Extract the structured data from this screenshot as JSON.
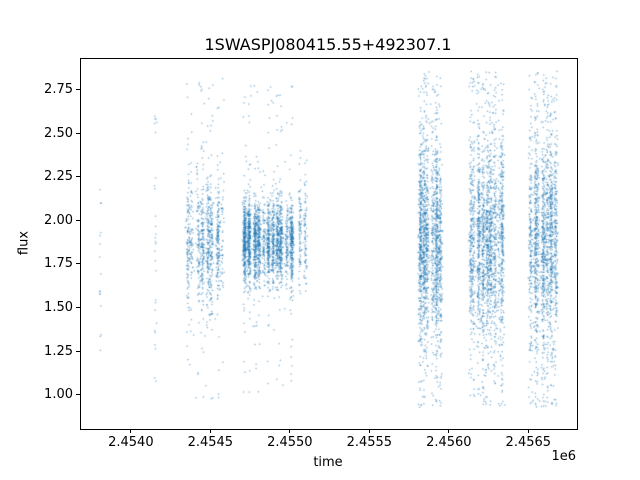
{
  "chart_data": {
    "type": "scatter",
    "title": "1SWASPJ080415.55+492307.1",
    "xlabel": "time",
    "ylabel": "flux",
    "x_offset_text": "1e6",
    "xlim": [
      2453680,
      2456800
    ],
    "ylim": [
      0.81,
      2.93
    ],
    "x_ticks": {
      "values": [
        2454000,
        2454500,
        2455000,
        2455500,
        2456000,
        2456500
      ],
      "labels": [
        "2.4540",
        "2.4545",
        "2.4550",
        "2.4555",
        "2.4560",
        "2.4565"
      ]
    },
    "y_ticks": {
      "values": [
        1.0,
        1.25,
        1.5,
        1.75,
        2.0,
        2.25,
        2.5,
        2.75
      ],
      "labels": [
        "1.00",
        "1.25",
        "1.50",
        "1.75",
        "2.00",
        "2.25",
        "2.50",
        "2.75"
      ]
    },
    "grid": false,
    "legend": null,
    "marker_color": "#1f77b4",
    "marker_alpha": 0.55,
    "marker_size": 1.3,
    "series": [
      {
        "name": "flux",
        "structure": "nightly-clusters",
        "clusters": [
          {
            "t_start": 2453795,
            "t_end": 2453815,
            "nights": 1,
            "points": 16,
            "night_sigma": 4,
            "flux_mean": 1.85,
            "flux_sigma": 0.38,
            "tail_frac": 0.45,
            "flux_min": 1.22,
            "flux_max": 2.44
          },
          {
            "t_start": 2454140,
            "t_end": 2454160,
            "nights": 1,
            "points": 28,
            "night_sigma": 4,
            "flux_mean": 1.8,
            "flux_sigma": 0.45,
            "tail_frac": 0.5,
            "flux_min": 0.95,
            "flux_max": 2.72
          },
          {
            "t_start": 2454335,
            "t_end": 2454585,
            "nights": 8,
            "points": 950,
            "night_sigma": 6,
            "flux_mean": 1.88,
            "flux_sigma": 0.17,
            "tail_frac": 0.13,
            "flux_min": 0.95,
            "flux_max": 2.82
          },
          {
            "t_start": 2454700,
            "t_end": 2455015,
            "nights": 11,
            "points": 2400,
            "night_sigma": 6,
            "flux_mean": 1.88,
            "flux_sigma": 0.12,
            "tail_frac": 0.07,
            "flux_min": 1.02,
            "flux_max": 2.78
          },
          {
            "t_start": 2455050,
            "t_end": 2455100,
            "nights": 2,
            "points": 160,
            "night_sigma": 5,
            "flux_mean": 1.95,
            "flux_sigma": 0.17,
            "tail_frac": 0.1,
            "flux_min": 1.58,
            "flux_max": 2.42
          },
          {
            "t_start": 2455800,
            "t_end": 2455950,
            "nights": 6,
            "points": 1700,
            "night_sigma": 6,
            "flux_mean": 1.88,
            "flux_sigma": 0.27,
            "tail_frac": 0.2,
            "flux_min": 0.93,
            "flux_max": 2.86
          },
          {
            "t_start": 2456115,
            "t_end": 2456345,
            "nights": 9,
            "points": 2000,
            "night_sigma": 6,
            "flux_mean": 1.88,
            "flux_sigma": 0.27,
            "tail_frac": 0.2,
            "flux_min": 0.93,
            "flux_max": 2.86
          },
          {
            "t_start": 2456495,
            "t_end": 2456680,
            "nights": 7,
            "points": 1700,
            "night_sigma": 6,
            "flux_mean": 1.88,
            "flux_sigma": 0.3,
            "tail_frac": 0.22,
            "flux_min": 0.93,
            "flux_max": 2.86
          }
        ]
      }
    ]
  }
}
